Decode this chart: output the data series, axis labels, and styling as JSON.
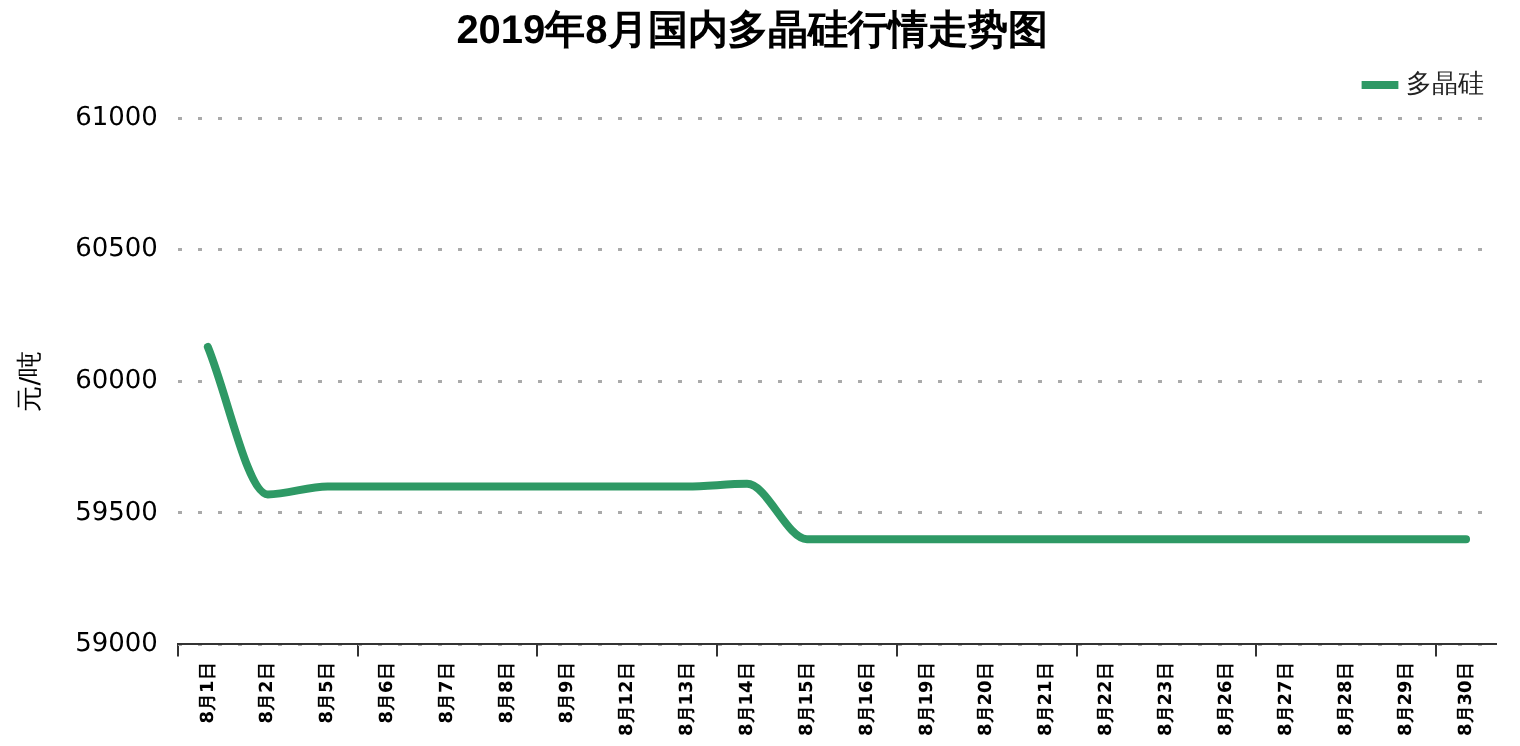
{
  "chart_data": {
    "type": "line",
    "title": "2019年8月国内多晶硅行情走势图",
    "ylabel": "元/吨",
    "categories": [
      "8月1日",
      "8月2日",
      "8月5日",
      "8月6日",
      "8月7日",
      "8月8日",
      "8月9日",
      "8月12日",
      "8月13日",
      "8月14日",
      "8月15日",
      "8月16日",
      "8月19日",
      "8月20日",
      "8月21日",
      "8月22日",
      "8月23日",
      "8月26日",
      "8月27日",
      "8月28日",
      "8月29日",
      "8月30日"
    ],
    "series": [
      {
        "name": "多晶硅",
        "color": "#2e9965",
        "values": [
          60130,
          59570,
          59600,
          59600,
          59600,
          59600,
          59600,
          59600,
          59600,
          59610,
          59400,
          59400,
          59400,
          59400,
          59400,
          59400,
          59400,
          59400,
          59400,
          59400,
          59400,
          59400
        ]
      }
    ],
    "ylim": [
      59000,
      61000
    ],
    "yticks": [
      59000,
      59500,
      60000,
      60500,
      61000
    ],
    "grid": "y",
    "legend": "top right",
    "marker": "none",
    "line_style": "solid"
  }
}
